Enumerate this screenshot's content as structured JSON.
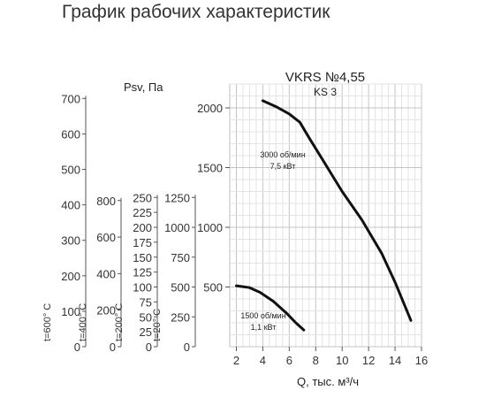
{
  "page": {
    "title": "График рабочих характеристик"
  },
  "chart_data": {
    "type": "line",
    "title": "VKRS №4,55",
    "subtitle": "KS 3",
    "xlabel": "Q, тыс. м³/ч",
    "ylabel": "Psv, Па",
    "xlim": [
      1.5,
      16
    ],
    "ylim": [
      0,
      2200
    ],
    "grid": true,
    "x_ticks": [
      "2",
      "4",
      "6",
      "8",
      "10",
      "12",
      "14",
      "16"
    ],
    "y_ticks": [
      "500",
      "1000",
      "1500",
      "2000"
    ],
    "extra_axes": [
      {
        "label": "t=20° C",
        "ticks": [
          {
            "v": 0,
            "t": "0"
          },
          {
            "v": 250,
            "t": "250"
          },
          {
            "v": 500,
            "t": "500"
          },
          {
            "v": 750,
            "t": "750"
          },
          {
            "v": 1000,
            "t": "1000"
          },
          {
            "v": 1250,
            "t": "1250"
          }
        ],
        "pa_per_unit": 1.0
      },
      {
        "label": "t=200° C",
        "ticks": [
          {
            "v": 0,
            "t": "0"
          },
          {
            "v": 25,
            "t": "25"
          },
          {
            "v": 50,
            "t": "50"
          },
          {
            "v": 75,
            "t": "75"
          },
          {
            "v": 100,
            "t": "100"
          },
          {
            "v": 125,
            "t": "125"
          },
          {
            "v": 150,
            "t": "150"
          },
          {
            "v": 175,
            "t": "175"
          },
          {
            "v": 200,
            "t": "200"
          },
          {
            "v": 225,
            "t": "225"
          },
          {
            "v": 250,
            "t": "250"
          }
        ],
        "pa_per_unit": 5.0
      },
      {
        "label": "t=400° C",
        "ticks": [
          {
            "v": 0,
            "t": "0"
          },
          {
            "v": 200,
            "t": "200"
          },
          {
            "v": 400,
            "t": "400"
          },
          {
            "v": 600,
            "t": "600"
          },
          {
            "v": 800,
            "t": "800"
          }
        ],
        "pa_per_unit": 1.53
      },
      {
        "label": "t=600° C",
        "ticks": [
          {
            "v": 0,
            "t": "0"
          },
          {
            "v": 100,
            "t": "100"
          },
          {
            "v": 200,
            "t": "200"
          },
          {
            "v": 300,
            "t": "300"
          },
          {
            "v": 400,
            "t": "400"
          },
          {
            "v": 500,
            "t": "500"
          },
          {
            "v": 600,
            "t": "600"
          },
          {
            "v": 700,
            "t": "700"
          }
        ],
        "pa_per_unit": 2.97
      }
    ],
    "series": [
      {
        "name": "3000 об/мин 7,5 кВт",
        "label_line1": "3000 об/мин",
        "label_line2": "7,5 кВт",
        "x": [
          4,
          5,
          6,
          6.8,
          7.5,
          8.5,
          10,
          11.5,
          13,
          14,
          15.2
        ],
        "y": [
          2060,
          2010,
          1950,
          1880,
          1750,
          1570,
          1300,
          1060,
          780,
          540,
          220
        ]
      },
      {
        "name": "1500 об/мин 1,1 кВт",
        "label_line1": "1500 об/мин",
        "label_line2": "1,1 кВт",
        "x": [
          2,
          3,
          3.8,
          4.8,
          5.8,
          6.5,
          7.1
        ],
        "y": [
          510,
          495,
          455,
          380,
          280,
          200,
          140
        ]
      }
    ]
  }
}
